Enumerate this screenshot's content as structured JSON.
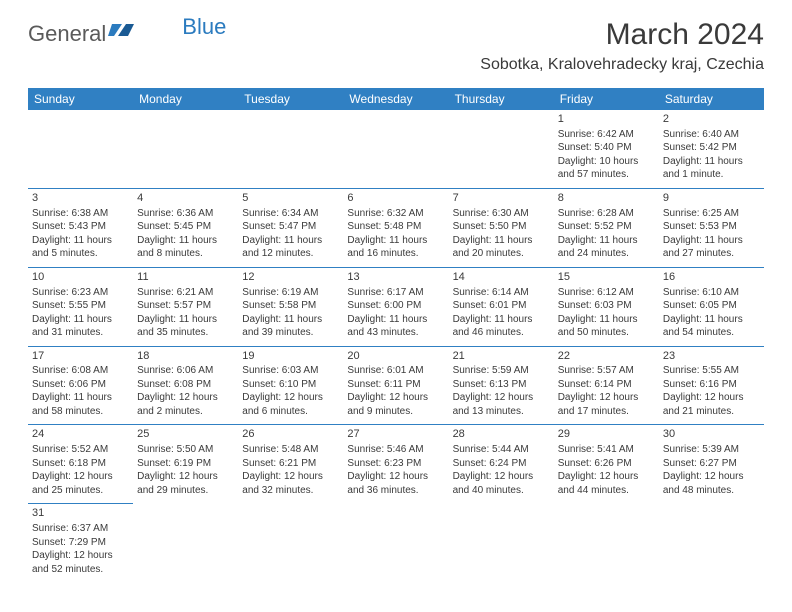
{
  "logo": {
    "text1": "General",
    "text2": "Blue"
  },
  "title": "March 2024",
  "location": "Sobotka, Kralovehradecky kraj, Czechia",
  "colors": {
    "header_bg": "#3080c3",
    "header_text": "#ffffff",
    "border": "#3080c3",
    "body_text": "#3a3a3a",
    "logo_gray": "#5a5a5a",
    "logo_blue": "#2b7bbf",
    "background": "#ffffff"
  },
  "weekdays": [
    "Sunday",
    "Monday",
    "Tuesday",
    "Wednesday",
    "Thursday",
    "Friday",
    "Saturday"
  ],
  "weeks": [
    [
      null,
      null,
      null,
      null,
      null,
      {
        "n": "1",
        "sr": "Sunrise: 6:42 AM",
        "ss": "Sunset: 5:40 PM",
        "dl1": "Daylight: 10 hours",
        "dl2": "and 57 minutes."
      },
      {
        "n": "2",
        "sr": "Sunrise: 6:40 AM",
        "ss": "Sunset: 5:42 PM",
        "dl1": "Daylight: 11 hours",
        "dl2": "and 1 minute."
      }
    ],
    [
      {
        "n": "3",
        "sr": "Sunrise: 6:38 AM",
        "ss": "Sunset: 5:43 PM",
        "dl1": "Daylight: 11 hours",
        "dl2": "and 5 minutes."
      },
      {
        "n": "4",
        "sr": "Sunrise: 6:36 AM",
        "ss": "Sunset: 5:45 PM",
        "dl1": "Daylight: 11 hours",
        "dl2": "and 8 minutes."
      },
      {
        "n": "5",
        "sr": "Sunrise: 6:34 AM",
        "ss": "Sunset: 5:47 PM",
        "dl1": "Daylight: 11 hours",
        "dl2": "and 12 minutes."
      },
      {
        "n": "6",
        "sr": "Sunrise: 6:32 AM",
        "ss": "Sunset: 5:48 PM",
        "dl1": "Daylight: 11 hours",
        "dl2": "and 16 minutes."
      },
      {
        "n": "7",
        "sr": "Sunrise: 6:30 AM",
        "ss": "Sunset: 5:50 PM",
        "dl1": "Daylight: 11 hours",
        "dl2": "and 20 minutes."
      },
      {
        "n": "8",
        "sr": "Sunrise: 6:28 AM",
        "ss": "Sunset: 5:52 PM",
        "dl1": "Daylight: 11 hours",
        "dl2": "and 24 minutes."
      },
      {
        "n": "9",
        "sr": "Sunrise: 6:25 AM",
        "ss": "Sunset: 5:53 PM",
        "dl1": "Daylight: 11 hours",
        "dl2": "and 27 minutes."
      }
    ],
    [
      {
        "n": "10",
        "sr": "Sunrise: 6:23 AM",
        "ss": "Sunset: 5:55 PM",
        "dl1": "Daylight: 11 hours",
        "dl2": "and 31 minutes."
      },
      {
        "n": "11",
        "sr": "Sunrise: 6:21 AM",
        "ss": "Sunset: 5:57 PM",
        "dl1": "Daylight: 11 hours",
        "dl2": "and 35 minutes."
      },
      {
        "n": "12",
        "sr": "Sunrise: 6:19 AM",
        "ss": "Sunset: 5:58 PM",
        "dl1": "Daylight: 11 hours",
        "dl2": "and 39 minutes."
      },
      {
        "n": "13",
        "sr": "Sunrise: 6:17 AM",
        "ss": "Sunset: 6:00 PM",
        "dl1": "Daylight: 11 hours",
        "dl2": "and 43 minutes."
      },
      {
        "n": "14",
        "sr": "Sunrise: 6:14 AM",
        "ss": "Sunset: 6:01 PM",
        "dl1": "Daylight: 11 hours",
        "dl2": "and 46 minutes."
      },
      {
        "n": "15",
        "sr": "Sunrise: 6:12 AM",
        "ss": "Sunset: 6:03 PM",
        "dl1": "Daylight: 11 hours",
        "dl2": "and 50 minutes."
      },
      {
        "n": "16",
        "sr": "Sunrise: 6:10 AM",
        "ss": "Sunset: 6:05 PM",
        "dl1": "Daylight: 11 hours",
        "dl2": "and 54 minutes."
      }
    ],
    [
      {
        "n": "17",
        "sr": "Sunrise: 6:08 AM",
        "ss": "Sunset: 6:06 PM",
        "dl1": "Daylight: 11 hours",
        "dl2": "and 58 minutes."
      },
      {
        "n": "18",
        "sr": "Sunrise: 6:06 AM",
        "ss": "Sunset: 6:08 PM",
        "dl1": "Daylight: 12 hours",
        "dl2": "and 2 minutes."
      },
      {
        "n": "19",
        "sr": "Sunrise: 6:03 AM",
        "ss": "Sunset: 6:10 PM",
        "dl1": "Daylight: 12 hours",
        "dl2": "and 6 minutes."
      },
      {
        "n": "20",
        "sr": "Sunrise: 6:01 AM",
        "ss": "Sunset: 6:11 PM",
        "dl1": "Daylight: 12 hours",
        "dl2": "and 9 minutes."
      },
      {
        "n": "21",
        "sr": "Sunrise: 5:59 AM",
        "ss": "Sunset: 6:13 PM",
        "dl1": "Daylight: 12 hours",
        "dl2": "and 13 minutes."
      },
      {
        "n": "22",
        "sr": "Sunrise: 5:57 AM",
        "ss": "Sunset: 6:14 PM",
        "dl1": "Daylight: 12 hours",
        "dl2": "and 17 minutes."
      },
      {
        "n": "23",
        "sr": "Sunrise: 5:55 AM",
        "ss": "Sunset: 6:16 PM",
        "dl1": "Daylight: 12 hours",
        "dl2": "and 21 minutes."
      }
    ],
    [
      {
        "n": "24",
        "sr": "Sunrise: 5:52 AM",
        "ss": "Sunset: 6:18 PM",
        "dl1": "Daylight: 12 hours",
        "dl2": "and 25 minutes."
      },
      {
        "n": "25",
        "sr": "Sunrise: 5:50 AM",
        "ss": "Sunset: 6:19 PM",
        "dl1": "Daylight: 12 hours",
        "dl2": "and 29 minutes."
      },
      {
        "n": "26",
        "sr": "Sunrise: 5:48 AM",
        "ss": "Sunset: 6:21 PM",
        "dl1": "Daylight: 12 hours",
        "dl2": "and 32 minutes."
      },
      {
        "n": "27",
        "sr": "Sunrise: 5:46 AM",
        "ss": "Sunset: 6:23 PM",
        "dl1": "Daylight: 12 hours",
        "dl2": "and 36 minutes."
      },
      {
        "n": "28",
        "sr": "Sunrise: 5:44 AM",
        "ss": "Sunset: 6:24 PM",
        "dl1": "Daylight: 12 hours",
        "dl2": "and 40 minutes."
      },
      {
        "n": "29",
        "sr": "Sunrise: 5:41 AM",
        "ss": "Sunset: 6:26 PM",
        "dl1": "Daylight: 12 hours",
        "dl2": "and 44 minutes."
      },
      {
        "n": "30",
        "sr": "Sunrise: 5:39 AM",
        "ss": "Sunset: 6:27 PM",
        "dl1": "Daylight: 12 hours",
        "dl2": "and 48 minutes."
      }
    ],
    [
      {
        "n": "31",
        "sr": "Sunrise: 6:37 AM",
        "ss": "Sunset: 7:29 PM",
        "dl1": "Daylight: 12 hours",
        "dl2": "and 52 minutes."
      },
      null,
      null,
      null,
      null,
      null,
      null
    ]
  ]
}
